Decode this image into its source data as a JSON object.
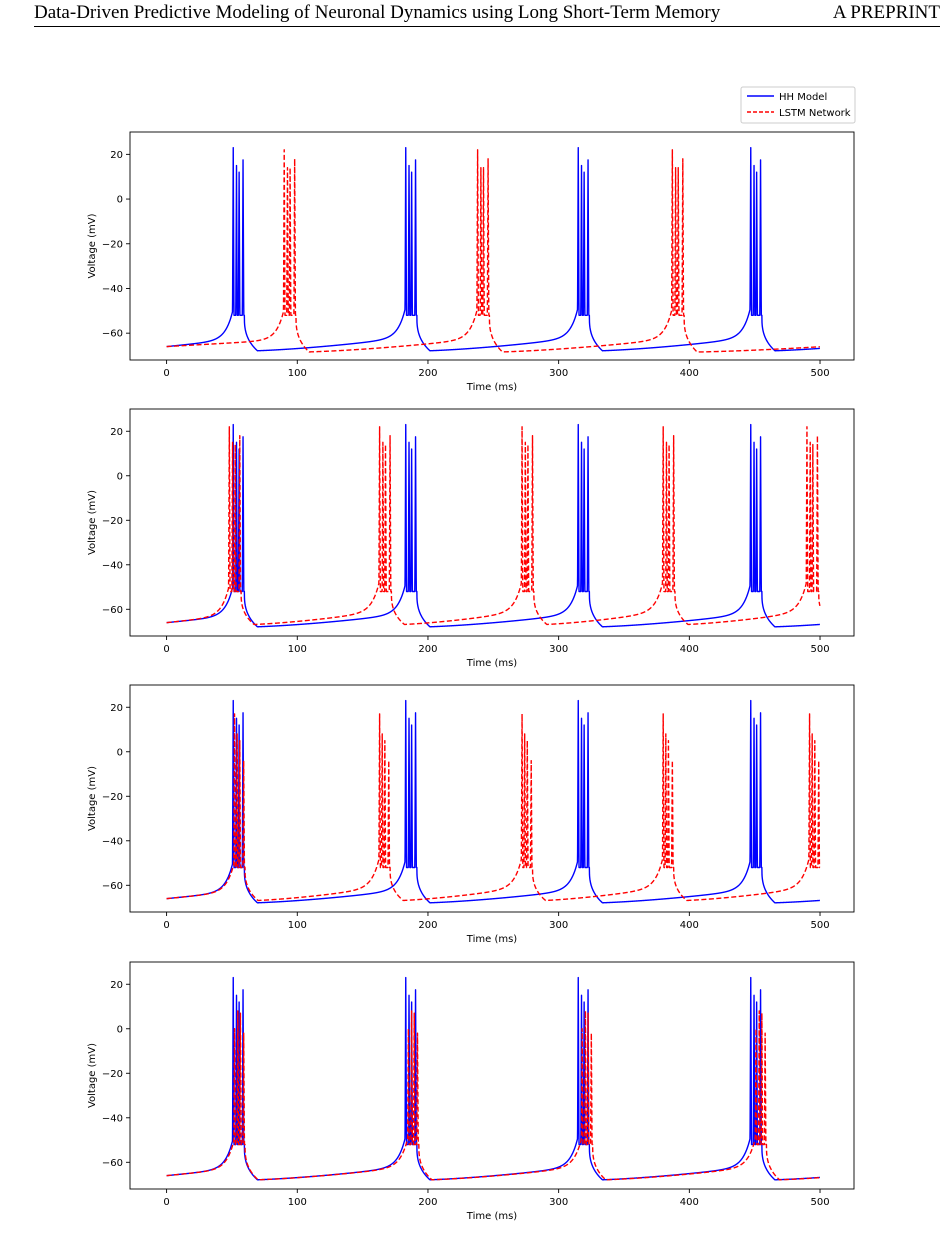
{
  "header": {
    "title": "Data-Driven Predictive Modeling of Neuronal Dynamics using Long Short-Term Memory",
    "tag_prefix": "A ",
    "tag_smallcaps": "PREPRINT"
  },
  "legend": {
    "entries": [
      {
        "label": "HH Model",
        "color": "#0000ff",
        "style": "solid"
      },
      {
        "label": "LSTM Network",
        "color": "#ff0000",
        "style": "dashed"
      }
    ],
    "placement": "top-right above first panel"
  },
  "chart_data": [
    {
      "type": "line",
      "xlabel": "Time (ms)",
      "ylabel": "Voltage (mV)",
      "xlim": [
        -28,
        526
      ],
      "ylim": [
        -72,
        30
      ],
      "xticks": [
        0,
        100,
        200,
        300,
        400,
        500
      ],
      "yticks": [
        20,
        0,
        -20,
        -40,
        -60
      ],
      "series": [
        {
          "name": "HH Model",
          "color": "#0000ff",
          "dashed": false,
          "bursts": [
            51,
            183,
            315,
            447
          ],
          "spikes": [
            23,
            15,
            12,
            17.5
          ],
          "spike_offsets": [
            0,
            2.5,
            4.5,
            7.5
          ],
          "rest": -66,
          "trough": -68
        },
        {
          "name": "LSTM Network",
          "color": "#ff0000",
          "dashed": true,
          "bursts": [
            90,
            238,
            387
          ],
          "spikes": [
            22,
            14,
            14,
            18
          ],
          "spike_offsets": [
            0,
            2.5,
            4.5,
            8
          ],
          "rest": -66,
          "trough": -68.5
        }
      ]
    },
    {
      "type": "line",
      "xlabel": "Time (ms)",
      "ylabel": "Voltage (mV)",
      "xlim": [
        -28,
        526
      ],
      "ylim": [
        -72,
        30
      ],
      "xticks": [
        0,
        100,
        200,
        300,
        400,
        500
      ],
      "yticks": [
        20,
        0,
        -20,
        -40,
        -60
      ],
      "series": [
        {
          "name": "HH Model",
          "color": "#0000ff",
          "dashed": false,
          "bursts": [
            51,
            183,
            315,
            447
          ],
          "spikes": [
            23,
            15,
            12,
            17.5
          ],
          "spike_offsets": [
            0,
            2.5,
            4.5,
            7.5
          ],
          "rest": -66,
          "trough": -68
        },
        {
          "name": "LSTM Network",
          "color": "#ff0000",
          "dashed": true,
          "bursts": [
            48,
            163,
            272,
            380,
            490
          ],
          "spikes": [
            22,
            15,
            14,
            18
          ],
          "spike_offsets": [
            0,
            2.5,
            4.5,
            8
          ],
          "rest": -66,
          "trough": -67
        }
      ]
    },
    {
      "type": "line",
      "xlabel": "Time (ms)",
      "ylabel": "Voltage (mV)",
      "xlim": [
        -28,
        526
      ],
      "ylim": [
        -72,
        30
      ],
      "xticks": [
        0,
        100,
        200,
        300,
        400,
        500
      ],
      "yticks": [
        20,
        0,
        -20,
        -40,
        -60
      ],
      "series": [
        {
          "name": "HH Model",
          "color": "#0000ff",
          "dashed": false,
          "bursts": [
            51,
            183,
            315,
            447
          ],
          "spikes": [
            23,
            15,
            12,
            17.5
          ],
          "spike_offsets": [
            0,
            2.5,
            4.5,
            7.5
          ],
          "rest": -66,
          "trough": -68
        },
        {
          "name": "LSTM Network",
          "color": "#ff0000",
          "dashed": true,
          "bursts": [
            52,
            163,
            272,
            380,
            492
          ],
          "spikes": [
            17,
            8,
            5,
            -4
          ],
          "spike_offsets": [
            0,
            2,
            4,
            7
          ],
          "rest": -66,
          "trough": -67
        }
      ]
    },
    {
      "type": "line",
      "xlabel": "Time (ms)",
      "ylabel": "Voltage (mV)",
      "xlim": [
        -28,
        526
      ],
      "ylim": [
        -72,
        30
      ],
      "xticks": [
        0,
        100,
        200,
        300,
        400,
        500
      ],
      "yticks": [
        20,
        0,
        -20,
        -40,
        -60
      ],
      "series": [
        {
          "name": "HH Model",
          "color": "#0000ff",
          "dashed": false,
          "bursts": [
            51,
            183,
            315,
            447
          ],
          "spikes": [
            23,
            15,
            12,
            17.5
          ],
          "spike_offsets": [
            0,
            2.5,
            4.5,
            7.5
          ],
          "rest": -66,
          "trough": -68
        },
        {
          "name": "LSTM Network",
          "color": "#ff0000",
          "dashed": true,
          "bursts": [
            52,
            185,
            318,
            451
          ],
          "spikes": [
            0,
            8,
            7,
            -2
          ],
          "spike_offsets": [
            0,
            2.5,
            4.5,
            7
          ],
          "rest": -66,
          "trough": -68
        }
      ]
    }
  ]
}
